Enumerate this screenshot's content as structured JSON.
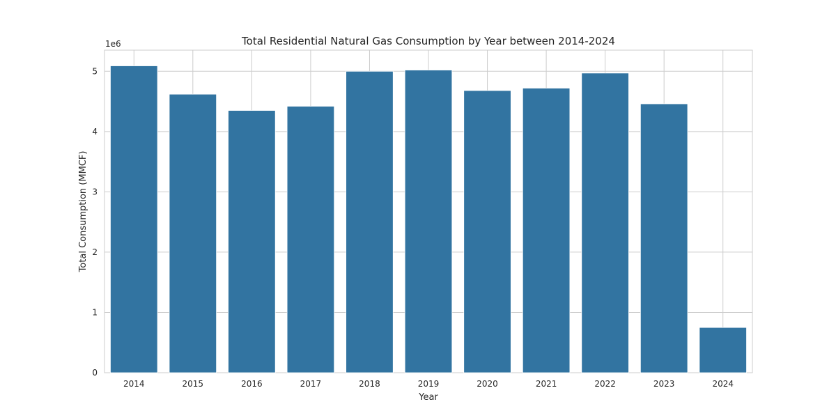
{
  "chart_data": {
    "type": "bar",
    "title": "Total Residential Natural Gas Consumption by Year between 2014-2024",
    "xlabel": "Year",
    "ylabel": "Total Consumption (MMCF)",
    "y_scale_label": "1e6",
    "categories": [
      "2014",
      "2015",
      "2016",
      "2017",
      "2018",
      "2019",
      "2020",
      "2021",
      "2022",
      "2023",
      "2024"
    ],
    "values": [
      5090000,
      4620000,
      4350000,
      4420000,
      5000000,
      5020000,
      4680000,
      4720000,
      4970000,
      4460000,
      750000
    ],
    "ylim": [
      0,
      5350000
    ],
    "yticks": [
      0,
      1000000,
      2000000,
      3000000,
      4000000,
      5000000
    ],
    "ytick_labels": [
      "0",
      "1",
      "2",
      "3",
      "4",
      "5"
    ],
    "bar_color": "#3274a1",
    "grid": true
  }
}
